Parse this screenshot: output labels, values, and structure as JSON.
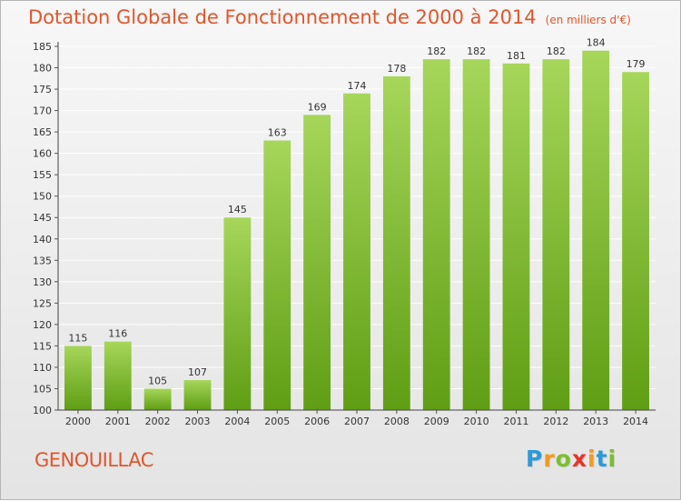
{
  "header": {
    "title": "Dotation Globale de Fonctionnement de 2000 à 2014",
    "unit": "(en milliers d'€)"
  },
  "footer": {
    "commune": "GENOUILLAC",
    "logo_letters": [
      "P",
      "r",
      "o",
      "x",
      "i",
      "t",
      "i"
    ],
    "logo_colors": [
      "#2c9ad8",
      "#f39a1e",
      "#7cbf2e",
      "#e8332a",
      "#f39a1e",
      "#2c9ad8",
      "#7cbf2e"
    ]
  },
  "colors": {
    "accent": "#e2552c",
    "bar_top": "#a6d65a",
    "bar_bottom": "#5f9e14",
    "grid": "#ffffff",
    "text": "#333333"
  },
  "chart_data": {
    "type": "bar",
    "categories": [
      "2000",
      "2001",
      "2002",
      "2003",
      "2004",
      "2005",
      "2006",
      "2007",
      "2008",
      "2009",
      "2010",
      "2011",
      "2012",
      "2013",
      "2014"
    ],
    "values": [
      115,
      116,
      105,
      107,
      145,
      163,
      169,
      174,
      178,
      182,
      182,
      181,
      182,
      184,
      179
    ],
    "title": "Dotation Globale de Fonctionnement de 2000 à 2014",
    "subtitle": "(en milliers d'€)",
    "xlabel": "",
    "ylabel": "",
    "ylim": [
      100,
      185
    ],
    "yticks": [
      100,
      105,
      110,
      115,
      120,
      125,
      130,
      135,
      140,
      145,
      150,
      155,
      160,
      165,
      170,
      175,
      180,
      185
    ],
    "grid": true,
    "data_labels": true
  }
}
